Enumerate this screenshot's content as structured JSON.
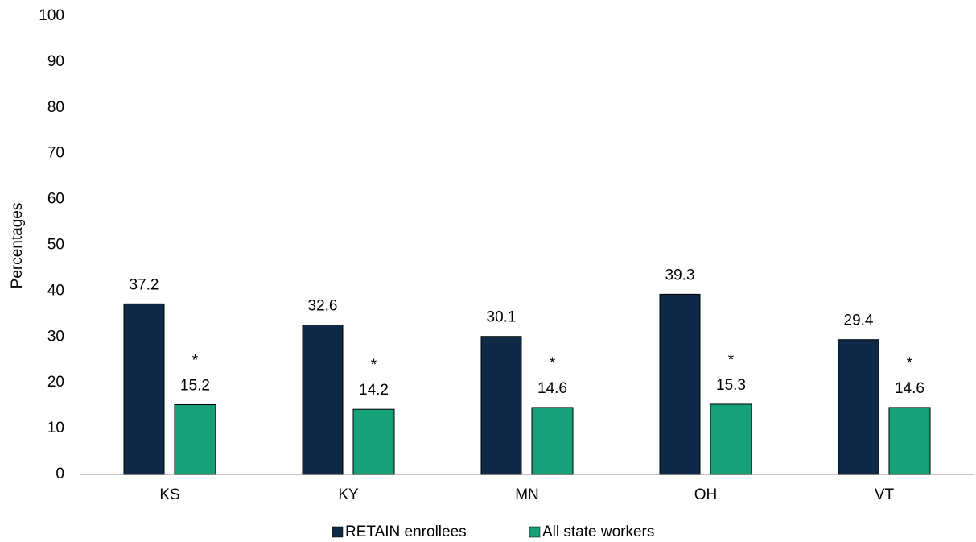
{
  "chart_data": {
    "type": "bar",
    "y_label": "Percentages",
    "categories": [
      "KS",
      "KY",
      "MN",
      "OH",
      "VT"
    ],
    "series": [
      {
        "name": "RETAIN enrollees",
        "color": "#0e2a47",
        "values": [
          37.2,
          32.6,
          30.1,
          39.3,
          29.4
        ]
      },
      {
        "name": "All state workers",
        "color": "#17a178",
        "values": [
          15.2,
          14.2,
          14.6,
          15.3,
          14.6
        ]
      }
    ],
    "annotations": [
      "*",
      "*",
      "*",
      "*",
      "*"
    ],
    "ylim": [
      0,
      100
    ],
    "yticks": [
      0,
      10,
      20,
      30,
      40,
      50,
      60,
      70,
      80,
      90,
      100
    ],
    "grid": false
  }
}
